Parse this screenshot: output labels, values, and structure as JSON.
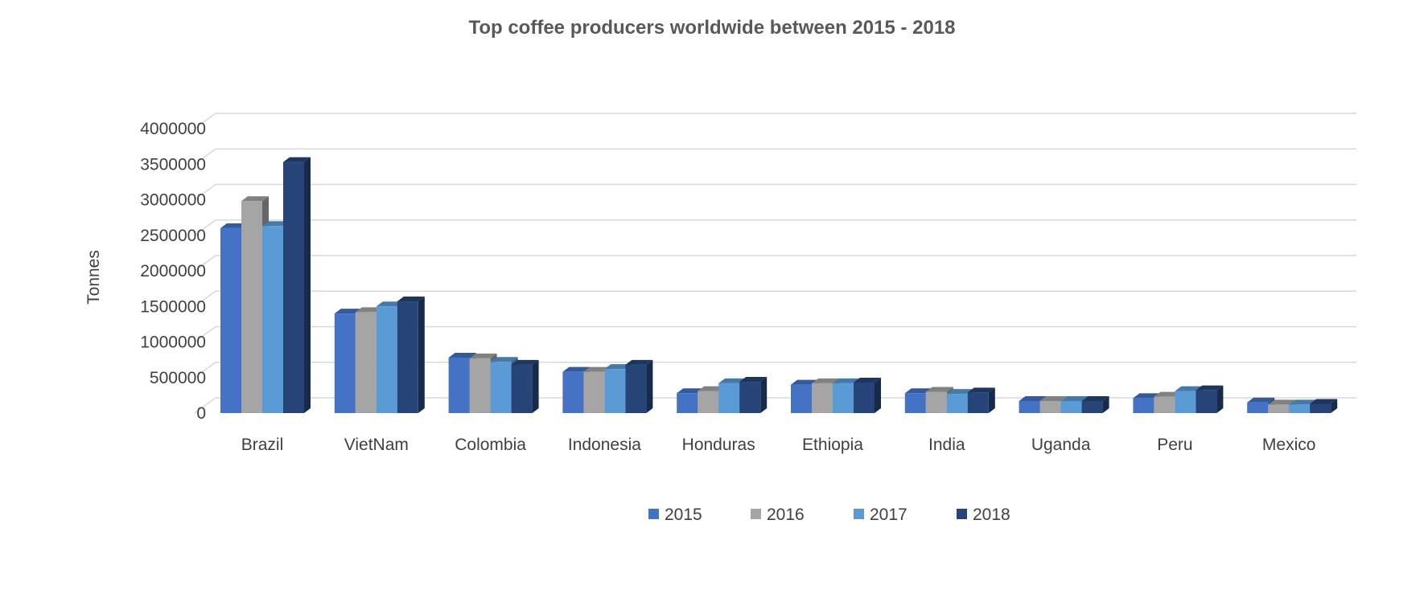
{
  "chart_data": {
    "type": "bar",
    "title": "Top coffee producers worldwide between 2015 - 2018",
    "xlabel": "",
    "ylabel": "Tonnes",
    "ylim": [
      0,
      4000000
    ],
    "yticks": [
      "0",
      "500000",
      "1000000",
      "1500000",
      "2000000",
      "2500000",
      "3000000",
      "3500000",
      "4000000"
    ],
    "grid": true,
    "legend_position": "bottom",
    "categories": [
      "Brazil",
      "VietNam",
      "Colombia",
      "Indonesia",
      "Honduras",
      "Ethiopia",
      "India",
      "Uganda",
      "Peru",
      "Mexico"
    ],
    "series": [
      {
        "name": "2015",
        "color": "#4472C4",
        "values": [
          2600000,
          1400000,
          780000,
          580000,
          280000,
          400000,
          280000,
          170000,
          210000,
          150000
        ]
      },
      {
        "name": "2016",
        "color": "#A5A5A5",
        "values": [
          2980000,
          1420000,
          770000,
          580000,
          310000,
          420000,
          300000,
          170000,
          230000,
          120000
        ]
      },
      {
        "name": "2017",
        "color": "#5B9BD5",
        "values": [
          2630000,
          1500000,
          720000,
          620000,
          420000,
          420000,
          270000,
          170000,
          310000,
          120000
        ]
      },
      {
        "name": "2018",
        "color": "#264478",
        "values": [
          3530000,
          1570000,
          680000,
          680000,
          440000,
          430000,
          290000,
          170000,
          320000,
          130000
        ]
      }
    ]
  }
}
